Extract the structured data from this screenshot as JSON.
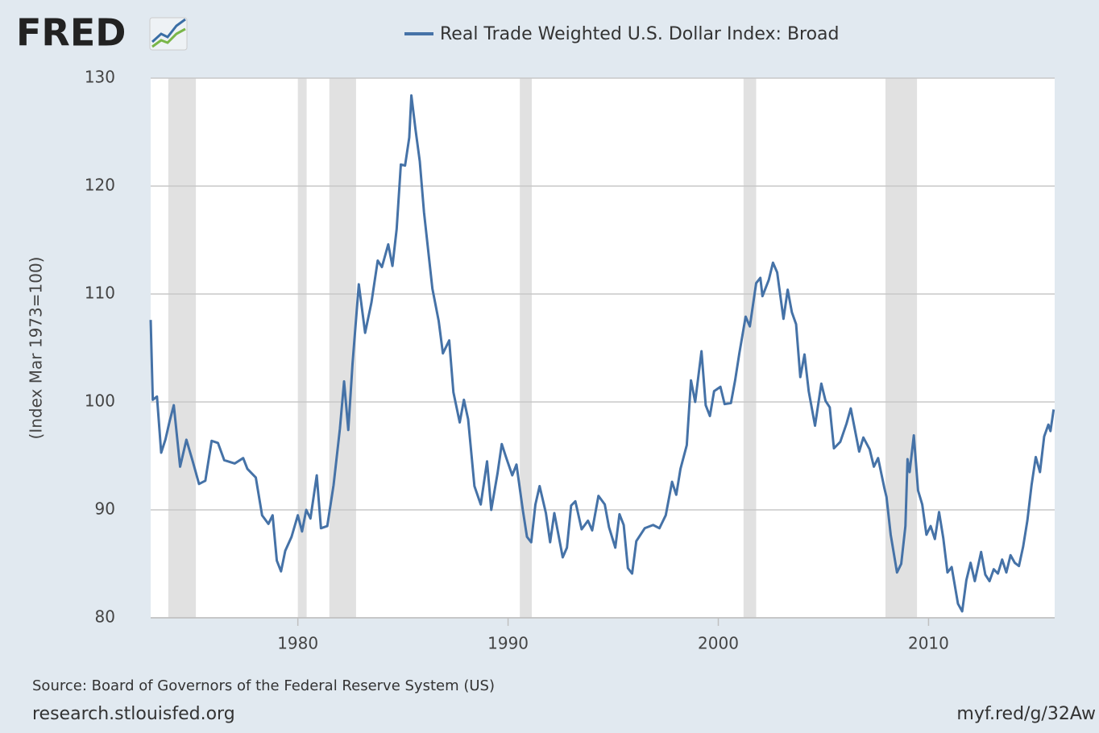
{
  "chart_data": {
    "type": "line",
    "logo": "FRED",
    "title": "Real Trade Weighted U.S. Dollar Index: Broad",
    "y_label": "(Index Mar 1973=100)",
    "source": "Source: Board of Governors of the Federal Reserve System (US)",
    "footer_left": "research.stlouisfed.org",
    "footer_right": "myf.red/g/32Aw",
    "xlim": [
      1973,
      2016
    ],
    "xticks": [
      1980,
      1990,
      2000,
      2010
    ],
    "ylim": [
      80,
      130
    ],
    "yticks": [
      80,
      90,
      100,
      110,
      120,
      130
    ],
    "grid": true,
    "recessions": [
      [
        1973.84,
        1975.15
      ],
      [
        1980.0,
        1980.42
      ],
      [
        1981.5,
        1982.77
      ],
      [
        1990.56,
        1991.13
      ],
      [
        2001.2,
        2001.8
      ],
      [
        2007.95,
        2009.45
      ]
    ],
    "series": [
      {
        "name": "Real Trade Weighted U.S. Dollar Index: Broad",
        "color": "#4572a7",
        "x": [
          1973.0,
          1973.1,
          1973.3,
          1973.5,
          1973.7,
          1973.9,
          1974.1,
          1974.4,
          1974.7,
          1975.0,
          1975.3,
          1975.6,
          1975.9,
          1976.2,
          1976.5,
          1977.0,
          1977.4,
          1977.6,
          1978.0,
          1978.3,
          1978.6,
          1978.8,
          1979.0,
          1979.2,
          1979.4,
          1979.7,
          1980.0,
          1980.2,
          1980.4,
          1980.6,
          1980.9,
          1981.1,
          1981.4,
          1981.7,
          1982.0,
          1982.2,
          1982.4,
          1982.6,
          1982.9,
          1983.2,
          1983.5,
          1983.8,
          1984.0,
          1984.3,
          1984.5,
          1984.7,
          1984.9,
          1985.1,
          1985.3,
          1985.4,
          1985.6,
          1985.8,
          1986.0,
          1986.4,
          1986.7,
          1986.9,
          1987.2,
          1987.4,
          1987.7,
          1987.9,
          1988.1,
          1988.4,
          1988.7,
          1989.0,
          1989.2,
          1989.5,
          1989.7,
          1989.9,
          1990.2,
          1990.4,
          1990.7,
          1990.9,
          1991.1,
          1991.3,
          1991.5,
          1991.8,
          1992.0,
          1992.2,
          1992.6,
          1992.8,
          1993.0,
          1993.2,
          1993.5,
          1993.8,
          1994.0,
          1994.3,
          1994.6,
          1994.8,
          1995.1,
          1995.3,
          1995.5,
          1995.7,
          1995.9,
          1996.1,
          1996.5,
          1996.9,
          1997.2,
          1997.5,
          1997.8,
          1998.0,
          1998.2,
          1998.5,
          1998.7,
          1998.9,
          1999.2,
          1999.4,
          1999.6,
          1999.8,
          2000.1,
          2000.3,
          2000.6,
          2000.8,
          2001.0,
          2001.3,
          2001.5,
          2001.8,
          2002.0,
          2002.1,
          2002.4,
          2002.6,
          2002.8,
          2003.1,
          2003.3,
          2003.5,
          2003.7,
          2003.9,
          2004.1,
          2004.3,
          2004.6,
          2004.9,
          2005.1,
          2005.3,
          2005.5,
          2005.8,
          2006.1,
          2006.3,
          2006.5,
          2006.7,
          2006.9,
          2007.2,
          2007.4,
          2007.6,
          2007.9,
          2008.0,
          2008.2,
          2008.5,
          2008.7,
          2008.9,
          2009.0,
          2009.1,
          2009.3,
          2009.5,
          2009.7,
          2009.9,
          2010.1,
          2010.3,
          2010.5,
          2010.7,
          2010.9,
          2011.1,
          2011.4,
          2011.6,
          2011.8,
          2012.0,
          2012.2,
          2012.5,
          2012.7,
          2012.9,
          2013.1,
          2013.3,
          2013.5,
          2013.7,
          2013.9,
          2014.1,
          2014.3,
          2014.5,
          2014.7,
          2014.9,
          2015.1,
          2015.3,
          2015.5,
          2015.7,
          2015.8,
          2015.95
        ],
        "values": [
          107.6,
          100.2,
          100.5,
          95.3,
          96.5,
          98.2,
          99.7,
          94.0,
          96.5,
          94.5,
          92.4,
          92.7,
          96.4,
          96.2,
          94.6,
          94.3,
          94.8,
          93.8,
          93.0,
          89.5,
          88.7,
          89.5,
          85.3,
          84.3,
          86.2,
          87.5,
          89.5,
          88.0,
          90.0,
          89.2,
          93.2,
          88.3,
          88.5,
          92.3,
          97.5,
          101.9,
          97.4,
          103.5,
          110.9,
          106.4,
          109.2,
          113.1,
          112.5,
          114.6,
          112.6,
          116.0,
          122.0,
          121.9,
          124.5,
          128.4,
          125.2,
          122.3,
          117.6,
          110.5,
          107.5,
          104.5,
          105.7,
          100.9,
          98.1,
          100.2,
          98.4,
          92.2,
          90.5,
          94.5,
          90.0,
          93.4,
          96.1,
          94.9,
          93.2,
          94.2,
          90.0,
          87.5,
          87.0,
          90.5,
          92.2,
          89.7,
          87.0,
          89.7,
          85.6,
          86.5,
          90.4,
          90.8,
          88.2,
          89.0,
          88.1,
          91.3,
          90.5,
          88.4,
          86.5,
          89.6,
          88.6,
          84.6,
          84.1,
          87.1,
          88.3,
          88.6,
          88.3,
          89.5,
          92.6,
          91.4,
          93.8,
          96.0,
          102.0,
          100.0,
          104.7,
          99.7,
          98.7,
          101.0,
          101.4,
          99.8,
          99.9,
          102.0,
          104.5,
          107.9,
          107.0,
          111.0,
          111.5,
          109.8,
          111.3,
          112.9,
          112.0,
          107.7,
          110.4,
          108.3,
          107.2,
          102.3,
          104.4,
          101.0,
          97.8,
          101.7,
          100.1,
          99.5,
          95.7,
          96.3,
          98.0,
          99.4,
          97.4,
          95.4,
          96.7,
          95.6,
          94.0,
          94.8,
          92.0,
          91.2,
          87.7,
          84.2,
          85.0,
          88.5,
          94.7,
          93.5,
          96.9,
          91.8,
          90.5,
          87.7,
          88.5,
          87.3,
          89.8,
          87.4,
          84.2,
          84.7,
          81.3,
          80.6,
          83.5,
          85.1,
          83.4,
          86.1,
          84.0,
          83.4,
          84.5,
          84.1,
          85.4,
          84.2,
          85.8,
          85.1,
          84.8,
          86.6,
          89.0,
          92.3,
          94.9,
          93.5,
          96.8,
          97.9,
          97.3,
          99.3
        ]
      }
    ]
  }
}
